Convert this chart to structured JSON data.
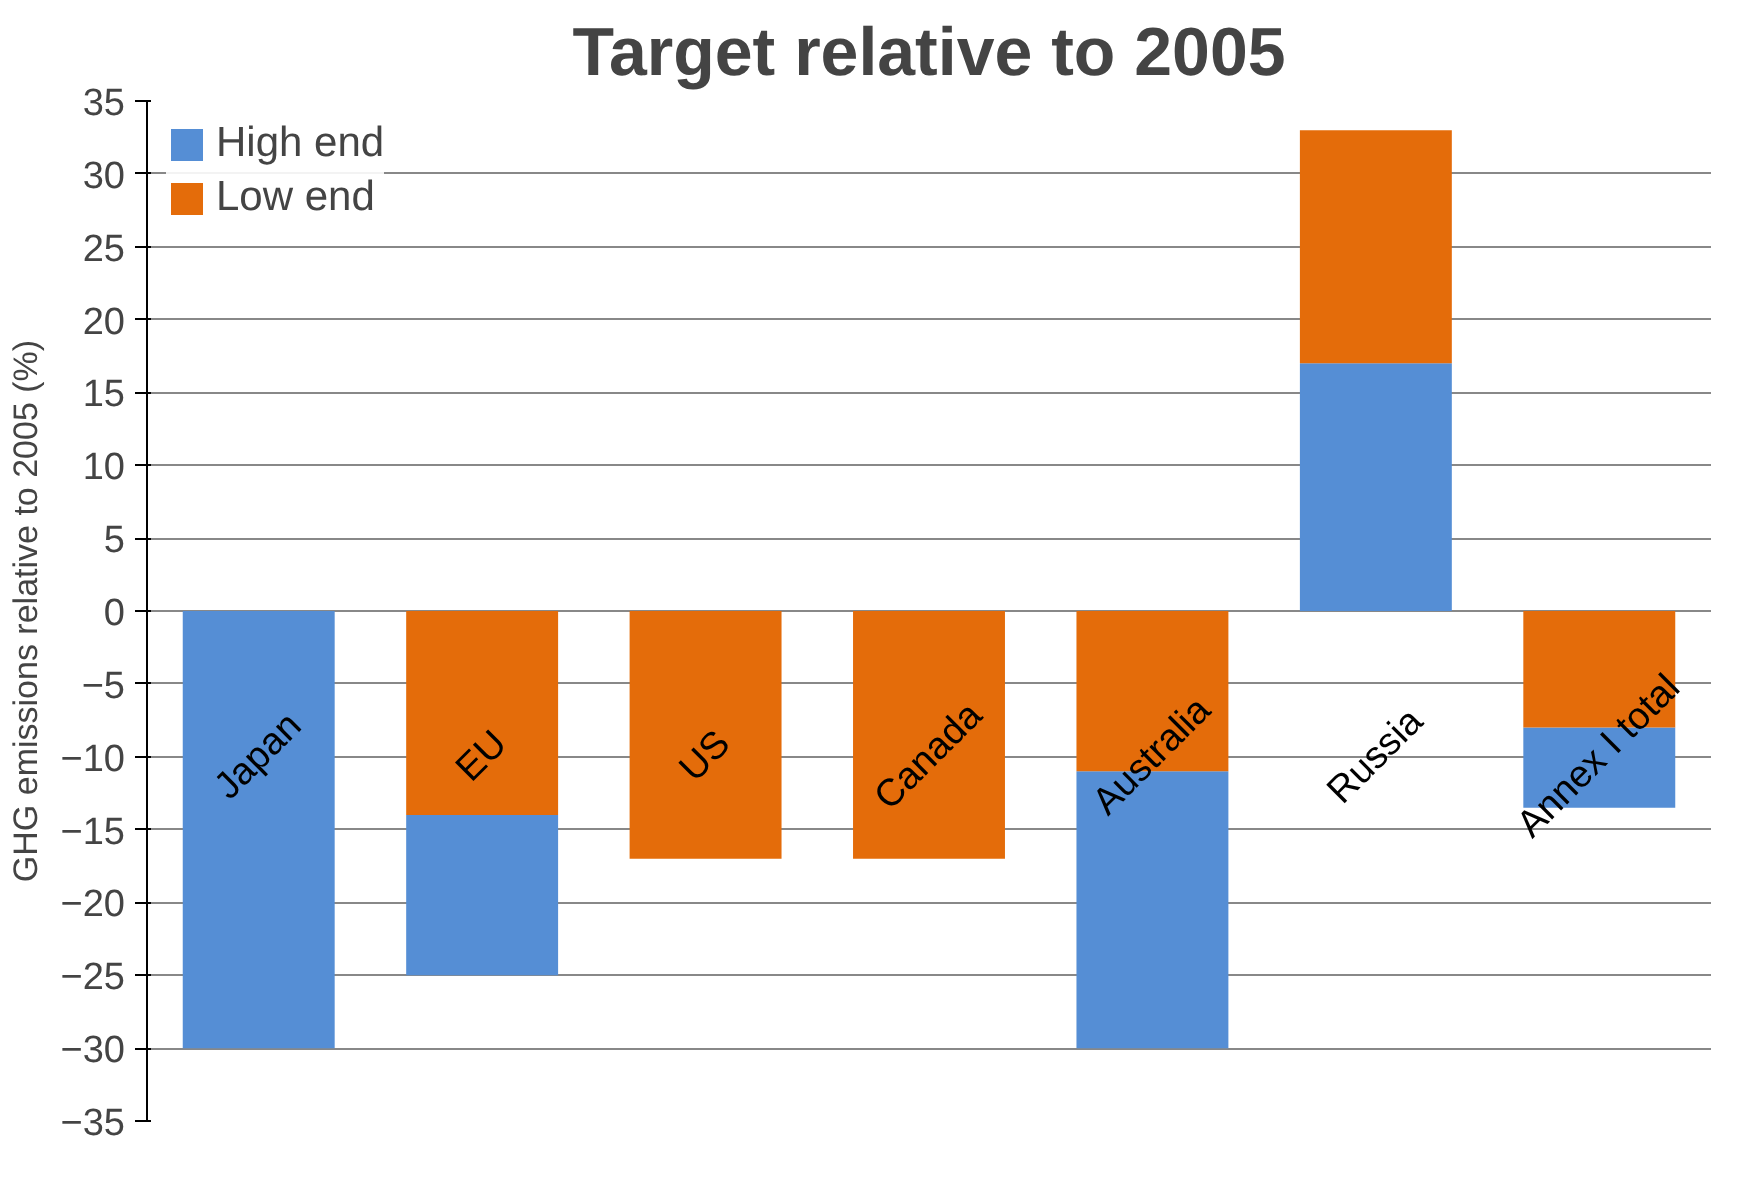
{
  "chart_data": {
    "type": "bar",
    "title": "Target relative to 2005",
    "ylabel": "GHG emissions relative to 2005 (%)",
    "categories": [
      "Japan",
      "EU",
      "US",
      "Canada",
      "Australia",
      "Russia",
      "Annex I total"
    ],
    "series": [
      {
        "name": "High end",
        "color": "#558ed5",
        "base": [
          0,
          -14,
          null,
          null,
          -11,
          0,
          -8
        ],
        "values": [
          -30,
          -11,
          null,
          null,
          -19,
          17,
          -5.5
        ]
      },
      {
        "name": "Low end",
        "color": "#e46c0a",
        "base": [
          null,
          0,
          0,
          0,
          0,
          17,
          0
        ],
        "values": [
          null,
          -14,
          -17,
          -17,
          -11,
          16,
          -8
        ]
      }
    ],
    "ylim": [
      -35,
      35
    ],
    "yticks": [
      -35,
      -30,
      -25,
      -20,
      -15,
      -10,
      -5,
      0,
      5,
      10,
      15,
      20,
      25,
      30,
      35
    ],
    "grid": "y",
    "legend": "top left"
  }
}
